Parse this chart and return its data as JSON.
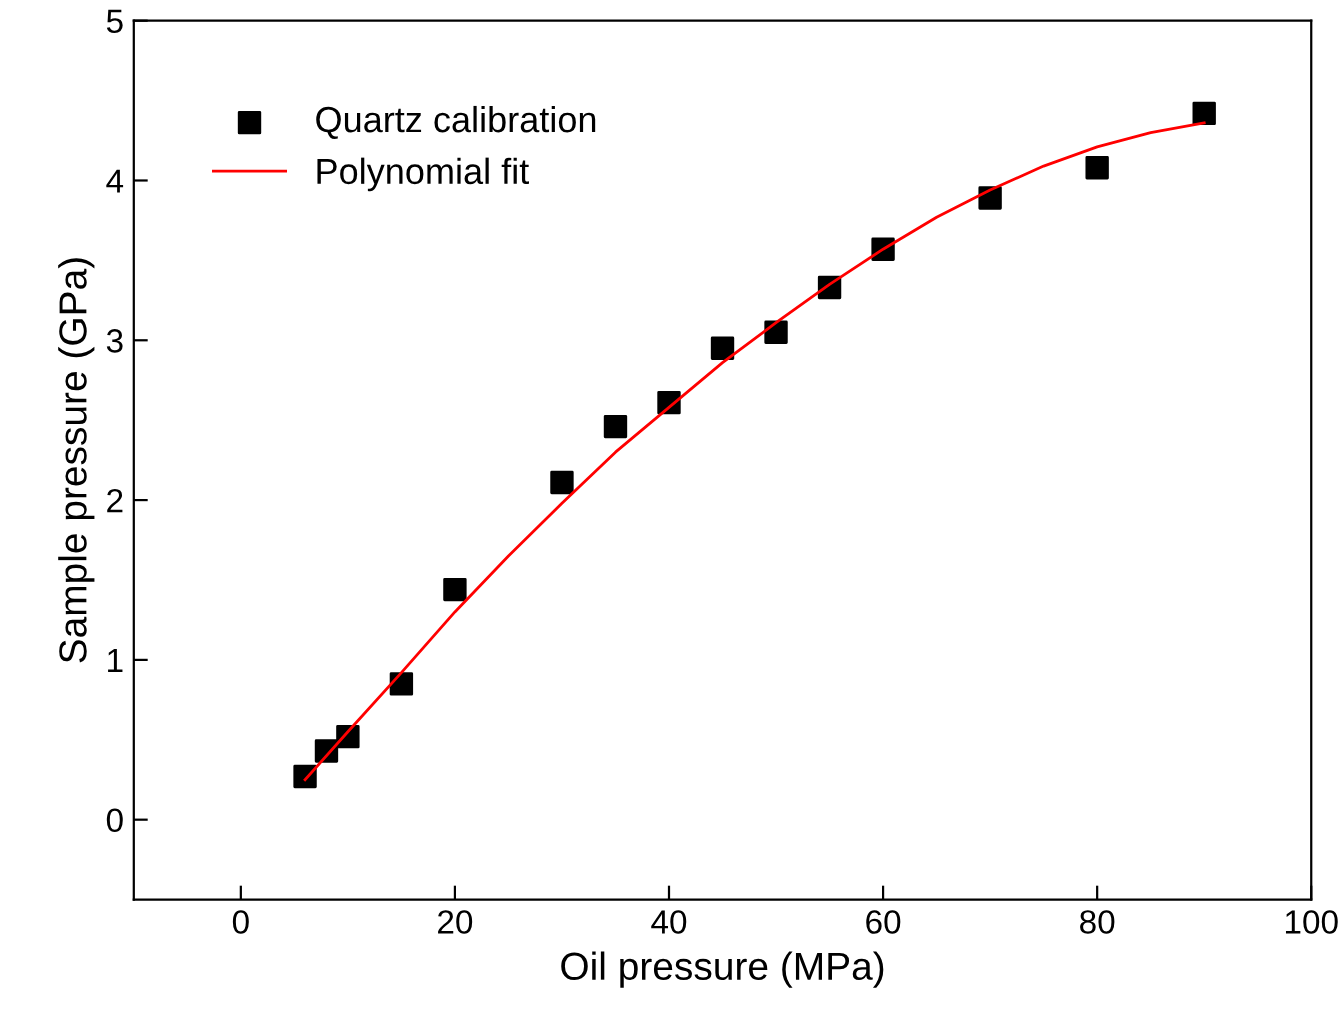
{
  "chart_data": {
    "type": "scatter",
    "xlabel": "Oil pressure (MPa)",
    "ylabel": "Sample pressure (GPa)",
    "xlim": [
      -10,
      100
    ],
    "xticks": [
      0,
      20,
      40,
      60,
      80,
      100
    ],
    "ylim": [
      -0.5,
      5
    ],
    "yticks": [
      0,
      1,
      2,
      3,
      4,
      5
    ],
    "grid": false,
    "legend": "top left",
    "marker": "square",
    "series": [
      {
        "name": "Quartz calibration",
        "color": "#000000",
        "x": [
          6,
          8,
          10,
          15,
          20,
          30,
          35,
          40,
          45,
          50,
          55,
          60,
          70,
          80,
          90
        ],
        "values": [
          0.27,
          0.43,
          0.52,
          0.85,
          1.44,
          2.11,
          2.46,
          2.61,
          2.95,
          3.05,
          3.33,
          3.57,
          3.89,
          4.08,
          4.42
        ]
      },
      {
        "name": "Polynomial fit",
        "type": "line",
        "color": "#ff0000",
        "marker": "none",
        "line_style": "solid",
        "x": [
          6,
          10,
          15,
          20,
          25,
          30,
          35,
          40,
          45,
          50,
          55,
          60,
          65,
          70,
          75,
          80,
          85,
          90
        ],
        "values": [
          0.25,
          0.55,
          0.92,
          1.3,
          1.65,
          1.98,
          2.3,
          2.58,
          2.86,
          3.11,
          3.35,
          3.57,
          3.77,
          3.94,
          4.09,
          4.21,
          4.3,
          4.36
        ]
      }
    ]
  }
}
